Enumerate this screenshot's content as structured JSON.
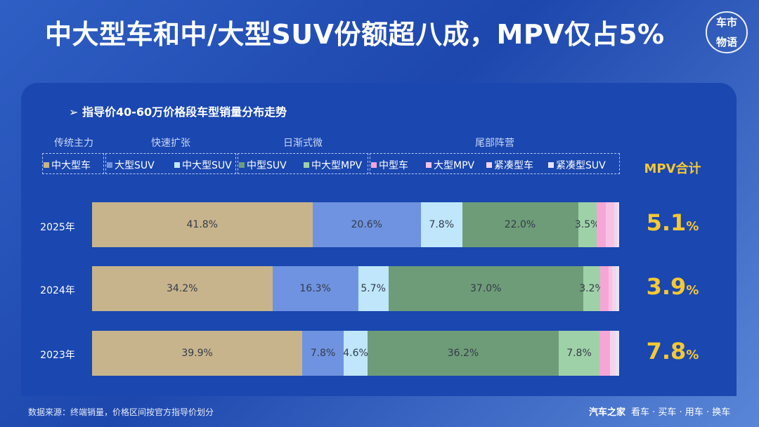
{
  "title": "中大型车和中/大型SUV份额超八成，MPV仅占5%",
  "logo_text": [
    "车市",
    "物语"
  ],
  "colors": {
    "中大型车": "#c8b48c",
    "大型SUV": "#6f93e0",
    "中大型SUV": "#bfe6fb",
    "中型SUV": "#6e9c78",
    "中大型MPV": "#9fd1a8",
    "中型车": "#f6a6d6",
    "大型MPV": "#f7c2e6",
    "紧凑型车": "#f4d4ec",
    "紧凑型SUV": "#e8e4f4",
    "mpv_highlight": "#f6c832"
  },
  "chart_data": {
    "type": "bar",
    "orientation": "horizontal-stacked-100",
    "subtitle": "➢ 指导价40-60万价格段车型销量分布走势",
    "groups": [
      {
        "label": "传统主力",
        "members": [
          "中大型车"
        ]
      },
      {
        "label": "快速扩张",
        "members": [
          "大型SUV",
          "中大型SUV"
        ]
      },
      {
        "label": "日渐式微",
        "members": [
          "中型SUV",
          "中大型MPV"
        ]
      },
      {
        "label": "尾部阵营",
        "members": [
          "中型车",
          "大型MPV",
          "紧凑型车",
          "紧凑型SUV"
        ]
      }
    ],
    "legend": [
      "中大型车",
      "大型SUV",
      "中大型SUV",
      "中型SUV",
      "中大型MPV",
      "中型车",
      "大型MPV",
      "紧凑型车",
      "紧凑型SUV"
    ],
    "categories": [
      "2025年",
      "2024年",
      "2023年"
    ],
    "series": [
      {
        "name": "中大型车",
        "values": [
          41.8,
          34.2,
          39.9
        ],
        "labels": [
          "41.8%",
          "34.2%",
          "39.9%"
        ]
      },
      {
        "name": "大型SUV",
        "values": [
          20.6,
          16.3,
          7.8
        ],
        "labels": [
          "20.6%",
          "16.3%",
          "7.8%"
        ]
      },
      {
        "name": "中大型SUV",
        "values": [
          7.8,
          5.7,
          4.6
        ],
        "labels": [
          "7.8%",
          "5.7%",
          "4.6%"
        ]
      },
      {
        "name": "中型SUV",
        "values": [
          22.0,
          37.0,
          36.2
        ],
        "labels": [
          "22.0%",
          "37.0%",
          "36.2%"
        ]
      },
      {
        "name": "中大型MPV",
        "values": [
          3.5,
          3.2,
          7.8
        ],
        "labels": [
          "3.5%",
          "3.2%",
          "7.8%"
        ]
      },
      {
        "name": "中型车",
        "values": [
          1.8,
          1.6,
          2.0
        ],
        "labels": [
          "",
          "",
          ""
        ]
      },
      {
        "name": "大型MPV",
        "values": [
          1.6,
          0.7,
          0.0
        ],
        "labels": [
          "",
          "",
          ""
        ]
      },
      {
        "name": "紧凑型车",
        "values": [
          0.5,
          0.8,
          1.0
        ],
        "labels": [
          "",
          "",
          ""
        ]
      },
      {
        "name": "紧凑型SUV",
        "values": [
          0.4,
          0.5,
          0.7
        ],
        "labels": [
          "",
          "",
          ""
        ]
      }
    ],
    "xlim": [
      0,
      100
    ],
    "mpv_total": {
      "header": "MPV合计",
      "values": [
        {
          "num": "5.1",
          "unit": "%"
        },
        {
          "num": "3.9",
          "unit": "%"
        },
        {
          "num": "7.8",
          "unit": "%"
        }
      ]
    }
  },
  "footer": {
    "source": "数据来源：终端销量，价格区间按官方指导价划分",
    "brand": "汽车之家",
    "tagline": "看车 · 买车 · 用车 · 换车"
  }
}
